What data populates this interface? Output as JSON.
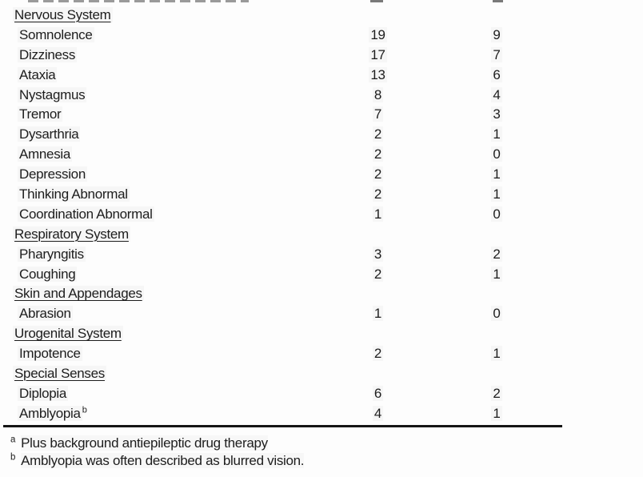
{
  "colors": {
    "text": "#1d1d1d",
    "rule": "#151515",
    "background": "#fdfdfd"
  },
  "table": {
    "description": "adverse-events-by-body-system-table-cropped-at-top",
    "rows": [
      {
        "type": "section",
        "label": "Nervous System"
      },
      {
        "type": "item",
        "label": "Somnolence",
        "c1": "19",
        "c2": "9"
      },
      {
        "type": "item",
        "label": "Dizziness",
        "c1": "17",
        "c2": "7"
      },
      {
        "type": "item",
        "label": "Ataxia",
        "c1": "13",
        "c2": "6"
      },
      {
        "type": "item",
        "label": "Nystagmus",
        "c1": "8",
        "c2": "4"
      },
      {
        "type": "item",
        "label": "Tremor",
        "c1": "7",
        "c2": "3"
      },
      {
        "type": "item",
        "label": "Dysarthria",
        "c1": "2",
        "c2": "1"
      },
      {
        "type": "item",
        "label": "Amnesia",
        "c1": "2",
        "c2": "0"
      },
      {
        "type": "item",
        "label": "Depression",
        "c1": "2",
        "c2": "1"
      },
      {
        "type": "item",
        "label": "Thinking Abnormal",
        "c1": "2",
        "c2": "1"
      },
      {
        "type": "item",
        "label": "Coordination Abnormal",
        "c1": "1",
        "c2": "0"
      },
      {
        "type": "section",
        "label": "Respiratory System"
      },
      {
        "type": "item",
        "label": "Pharyngitis",
        "c1": "3",
        "c2": "2"
      },
      {
        "type": "item",
        "label": "Coughing",
        "c1": "2",
        "c2": "1"
      },
      {
        "type": "section",
        "label": "Skin and Appendages"
      },
      {
        "type": "item",
        "label": "Abrasion",
        "c1": "1",
        "c2": "0"
      },
      {
        "type": "section",
        "label": "Urogenital System"
      },
      {
        "type": "item",
        "label": "Impotence",
        "c1": "2",
        "c2": "1"
      },
      {
        "type": "section",
        "label": "Special Senses"
      },
      {
        "type": "item",
        "label": "Diplopia",
        "c1": "6",
        "c2": "2"
      },
      {
        "type": "item",
        "label": "Amblyopia",
        "sup": "b",
        "c1": "4",
        "c2": "1"
      }
    ],
    "footnotes": [
      {
        "marker": "a",
        "text": "Plus background antiepileptic drug therapy"
      },
      {
        "marker": "b",
        "text": "Amblyopia was often described as blurred vision."
      }
    ]
  }
}
